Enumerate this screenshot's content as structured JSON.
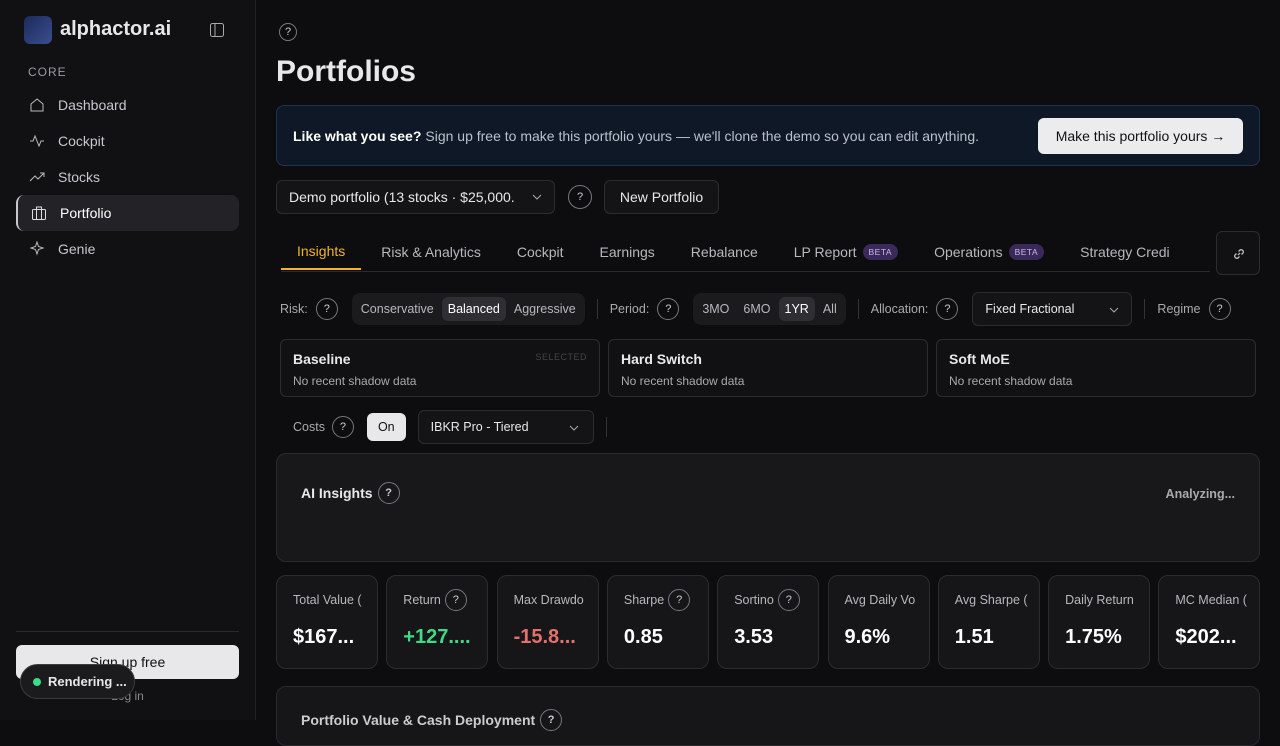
{
  "sidebar": {
    "brand": "alphactor.ai",
    "section": "CORE",
    "nav": [
      "Dashboard",
      "Cockpit",
      "Stocks",
      "Portfolio",
      "Genie"
    ],
    "signup": "Sign up free",
    "login": "Log in",
    "toast": "Rendering ..."
  },
  "page": {
    "help": "?",
    "title": "Portfolios"
  },
  "banner": {
    "lead": "Like what you see?",
    "text": "Sign up free to make this portfolio yours — we'll clone the demo so you can edit anything.",
    "button": "Make this portfolio yours →"
  },
  "toolbar": {
    "select": "Demo portfolio (13 stocks · $25,000.",
    "help": "?",
    "new": "New Portfolio"
  },
  "tabs": [
    {
      "label": "Insights"
    },
    {
      "label": "Risk & Analytics"
    },
    {
      "label": "Cockpit"
    },
    {
      "label": "Earnings"
    },
    {
      "label": "Rebalance"
    },
    {
      "label": "LP Report",
      "badge": "BETA"
    },
    {
      "label": "Operations",
      "badge": "BETA"
    },
    {
      "label": "Strategy Credi"
    }
  ],
  "controls": {
    "risk": {
      "label": "Risk:",
      "help": "?",
      "options": [
        "Conservative",
        "Balanced",
        "Aggressive"
      ]
    },
    "period": {
      "label": "Period:",
      "help": "?",
      "options": [
        "3MO",
        "6MO",
        "1YR",
        "All"
      ]
    },
    "allocation": {
      "label": "Allocation:",
      "help": "?",
      "value": "Fixed Fractional"
    },
    "regime": {
      "label": "Regime",
      "help": "?"
    }
  },
  "strategies": [
    {
      "name": "Baseline",
      "tag": "SELECTED",
      "status": "No recent shadow data"
    },
    {
      "name": "Hard Switch",
      "status": "No recent shadow data"
    },
    {
      "name": "Soft MoE",
      "status": "No recent shadow data"
    }
  ],
  "costs": {
    "label": "Costs",
    "help": "?",
    "toggle": "On",
    "broker": "IBKR Pro - Tiered"
  },
  "insights": {
    "title": "AI Insights",
    "help": "?",
    "status": "Analyzing..."
  },
  "metrics": [
    {
      "label": "Total Value (",
      "value": "$167..."
    },
    {
      "label": "Return",
      "help": "?",
      "value": "+127...."
    },
    {
      "label": "Max Drawdo",
      "value": "-15.8..."
    },
    {
      "label": "Sharpe",
      "help": "?",
      "value": "0.85"
    },
    {
      "label": "Sortino",
      "help": "?",
      "value": "3.53"
    },
    {
      "label": "Avg Daily Vo",
      "value": "9.6%"
    },
    {
      "label": "Avg Sharpe (",
      "value": "1.51"
    },
    {
      "label": "Daily Return",
      "value": "1.75%"
    },
    {
      "label": "MC Median (",
      "value": "$202..."
    }
  ],
  "chart_section": {
    "title": "Portfolio Value & Cash Deployment",
    "help": "?"
  }
}
